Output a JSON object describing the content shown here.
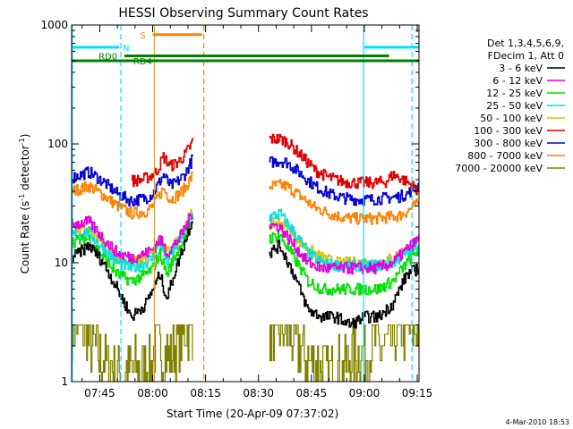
{
  "chart_data": {
    "type": "line",
    "title": "HESSI Observing Summary Count Rates",
    "xlabel": "Start Time (20-Apr-09 07:37:02)",
    "ylabel_main": "Count Rate (s",
    "ylabel_sup1": "-1",
    "ylabel_mid": " detector",
    "ylabel_sup2": "-1",
    "ylabel_end": ")",
    "y_scale": "log",
    "ylim": [
      1,
      1000
    ],
    "xlim_min": [
      457.03,
      555.5
    ],
    "y_ticks": [
      {
        "value": 1,
        "label": "1"
      },
      {
        "value": 10,
        "label": "10"
      },
      {
        "value": 100,
        "label": "100"
      },
      {
        "value": 1000,
        "label": "1000"
      }
    ],
    "x_ticks": [
      {
        "value": 465,
        "label": "07:45"
      },
      {
        "value": 480,
        "label": "08:00"
      },
      {
        "value": 495,
        "label": "08:15"
      },
      {
        "value": 510,
        "label": "08:30"
      },
      {
        "value": 525,
        "label": "08:45"
      },
      {
        "value": 540,
        "label": "09:00"
      },
      {
        "value": 555,
        "label": "09:15"
      }
    ],
    "legend": {
      "header": [
        "Det 1,3,4,5,6,9,",
        "FDecim 1, Att 0"
      ],
      "placement": "right",
      "entries": [
        {
          "label": "3 - 6 keV",
          "color": "#000000"
        },
        {
          "label": "6 - 12 keV",
          "color": "#e000e0"
        },
        {
          "label": "12 - 25 keV",
          "color": "#00e000"
        },
        {
          "label": "25 - 50 keV",
          "color": "#00e0e0"
        },
        {
          "label": "50 - 100 keV",
          "color": "#e0c000"
        },
        {
          "label": "100 - 300 keV",
          "color": "#e00000"
        },
        {
          "label": "300 - 800 keV",
          "color": "#0000d0"
        },
        {
          "label": "800 - 7000 keV",
          "color": "#ff8000"
        },
        {
          "label": "7000 - 20000 keV",
          "color": "#808000"
        }
      ]
    },
    "segments": [
      {
        "x_start": 457.03,
        "x_end": 491.5
      },
      {
        "x_start": 513.0,
        "x_end": 555.5
      }
    ],
    "data_gap": {
      "x_start": 491.5,
      "x_end": 513.0
    },
    "series": [
      {
        "name": "3 - 6 keV",
        "color": "#000000",
        "points": [
          [
            457.03,
            11
          ],
          [
            462,
            14
          ],
          [
            466,
            10
          ],
          [
            470,
            6
          ],
          [
            474,
            3.5
          ],
          [
            478,
            4.5
          ],
          [
            480,
            6
          ],
          [
            482,
            8
          ],
          [
            484,
            5
          ],
          [
            486,
            8
          ],
          [
            488,
            12
          ],
          [
            490,
            18
          ],
          [
            491.5,
            25
          ],
          [
            513,
            12
          ],
          [
            516,
            14
          ],
          [
            520,
            8
          ],
          [
            524,
            4
          ],
          [
            528,
            3.5
          ],
          [
            532,
            3.5
          ],
          [
            536,
            3
          ],
          [
            540,
            3.5
          ],
          [
            544,
            3.5
          ],
          [
            548,
            4.5
          ],
          [
            552,
            8
          ],
          [
            555.5,
            9
          ]
        ]
      },
      {
        "name": "6 - 12 keV",
        "color": "#e000e0",
        "points": [
          [
            457.03,
            21
          ],
          [
            462,
            22
          ],
          [
            466,
            16
          ],
          [
            470,
            12
          ],
          [
            474,
            11
          ],
          [
            478,
            12
          ],
          [
            480,
            13
          ],
          [
            482,
            16
          ],
          [
            484,
            12
          ],
          [
            486,
            14
          ],
          [
            488,
            17
          ],
          [
            490,
            22
          ],
          [
            491.5,
            28
          ],
          [
            513,
            21
          ],
          [
            516,
            20
          ],
          [
            520,
            14
          ],
          [
            524,
            10
          ],
          [
            528,
            9
          ],
          [
            532,
            9
          ],
          [
            536,
            9
          ],
          [
            540,
            9
          ],
          [
            544,
            9
          ],
          [
            548,
            10
          ],
          [
            552,
            13
          ],
          [
            555.5,
            16
          ]
        ]
      },
      {
        "name": "12 - 25 keV",
        "color": "#00e000",
        "points": [
          [
            457.03,
            15
          ],
          [
            462,
            16
          ],
          [
            466,
            11
          ],
          [
            470,
            8
          ],
          [
            474,
            7
          ],
          [
            478,
            8
          ],
          [
            480,
            9
          ],
          [
            482,
            12
          ],
          [
            484,
            8
          ],
          [
            486,
            11
          ],
          [
            488,
            14
          ],
          [
            490,
            18
          ],
          [
            491.5,
            24
          ],
          [
            513,
            16
          ],
          [
            516,
            17
          ],
          [
            520,
            11
          ],
          [
            524,
            7
          ],
          [
            528,
            6
          ],
          [
            532,
            6
          ],
          [
            536,
            6
          ],
          [
            540,
            6
          ],
          [
            544,
            6
          ],
          [
            548,
            7
          ],
          [
            552,
            10
          ],
          [
            555.5,
            13
          ]
        ]
      },
      {
        "name": "25 - 50 keV",
        "color": "#00e0e0",
        "points": [
          [
            457.03,
            17
          ],
          [
            462,
            18
          ],
          [
            466,
            13
          ],
          [
            470,
            10
          ],
          [
            474,
            9
          ],
          [
            478,
            10
          ],
          [
            480,
            11
          ],
          [
            482,
            15
          ],
          [
            484,
            10
          ],
          [
            486,
            13
          ],
          [
            488,
            16
          ],
          [
            490,
            21
          ],
          [
            491.5,
            27
          ],
          [
            513,
            24
          ],
          [
            516,
            26
          ],
          [
            520,
            18
          ],
          [
            524,
            12
          ],
          [
            528,
            10
          ],
          [
            532,
            9.5
          ],
          [
            536,
            9.5
          ],
          [
            540,
            9.5
          ],
          [
            544,
            9.5
          ],
          [
            548,
            10
          ],
          [
            552,
            12
          ],
          [
            555.5,
            14
          ]
        ]
      },
      {
        "name": "50 - 100 keV",
        "color": "#e0c000",
        "points": [
          [
            457.03,
            19
          ],
          [
            462,
            19
          ],
          [
            466,
            14
          ],
          [
            470,
            11
          ],
          [
            474,
            10
          ],
          [
            478,
            11
          ],
          [
            480,
            12
          ],
          [
            482,
            16
          ],
          [
            484,
            12
          ],
          [
            486,
            14
          ],
          [
            488,
            18
          ],
          [
            490,
            23
          ],
          [
            491.5,
            28
          ],
          [
            513,
            21
          ],
          [
            516,
            22
          ],
          [
            520,
            17
          ],
          [
            524,
            13
          ],
          [
            528,
            11
          ],
          [
            532,
            10
          ],
          [
            536,
            10
          ],
          [
            540,
            10
          ],
          [
            544,
            10
          ],
          [
            548,
            11
          ],
          [
            552,
            13
          ],
          [
            555.5,
            15
          ]
        ]
      },
      {
        "name": "100 - 300 keV",
        "color": "#e00000",
        "points": [
          [
            474,
            49
          ],
          [
            477,
            50
          ],
          [
            479,
            53
          ],
          [
            481,
            58
          ],
          [
            483,
            78
          ],
          [
            485,
            65
          ],
          [
            487,
            70
          ],
          [
            489,
            80
          ],
          [
            491,
            100
          ],
          [
            491.5,
            110
          ],
          [
            513,
            110
          ],
          [
            516,
            110
          ],
          [
            518,
            105
          ],
          [
            522,
            80
          ],
          [
            526,
            60
          ],
          [
            530,
            52
          ],
          [
            534,
            48
          ],
          [
            538,
            47
          ],
          [
            542,
            47
          ],
          [
            546,
            48
          ],
          [
            548,
            55
          ],
          [
            550,
            52
          ],
          [
            552,
            48
          ],
          [
            555.5,
            40
          ]
        ]
      },
      {
        "name": "300 - 800 keV",
        "color": "#0000d0",
        "points": [
          [
            457.03,
            52
          ],
          [
            462,
            58
          ],
          [
            466,
            48
          ],
          [
            470,
            38
          ],
          [
            474,
            33
          ],
          [
            478,
            35
          ],
          [
            480,
            38
          ],
          [
            483,
            55
          ],
          [
            485,
            44
          ],
          [
            487,
            48
          ],
          [
            489,
            55
          ],
          [
            491,
            72
          ],
          [
            491.5,
            78
          ],
          [
            513,
            70
          ],
          [
            516,
            72
          ],
          [
            518,
            70
          ],
          [
            522,
            56
          ],
          [
            526,
            44
          ],
          [
            530,
            38
          ],
          [
            534,
            35
          ],
          [
            538,
            34
          ],
          [
            542,
            34
          ],
          [
            546,
            35
          ],
          [
            550,
            36
          ],
          [
            552,
            38
          ],
          [
            555.5,
            45
          ]
        ]
      },
      {
        "name": "800 - 7000 keV",
        "color": "#ff8000",
        "points": [
          [
            457.03,
            40
          ],
          [
            462,
            44
          ],
          [
            466,
            37
          ],
          [
            470,
            30
          ],
          [
            474,
            26
          ],
          [
            478,
            27
          ],
          [
            480,
            30
          ],
          [
            483,
            42
          ],
          [
            485,
            34
          ],
          [
            487,
            37
          ],
          [
            489,
            42
          ],
          [
            491,
            53
          ],
          [
            491.5,
            56
          ],
          [
            513,
            44
          ],
          [
            516,
            45
          ],
          [
            518,
            44
          ],
          [
            522,
            36
          ],
          [
            526,
            29
          ],
          [
            530,
            26
          ],
          [
            534,
            24
          ],
          [
            538,
            23.5
          ],
          [
            542,
            23.5
          ],
          [
            546,
            24
          ],
          [
            550,
            25
          ],
          [
            552,
            27
          ],
          [
            555.5,
            32
          ]
        ]
      },
      {
        "name": "7000 - 20000 keV",
        "color": "#808000",
        "points": [
          [
            457.03,
            2.6
          ],
          [
            459,
            2.9
          ],
          [
            461,
            2.5
          ],
          [
            463,
            2.0
          ],
          [
            465,
            1.6
          ],
          [
            467,
            1.4
          ],
          [
            469,
            1.3
          ],
          [
            471,
            1.2
          ],
          [
            473,
            1.15
          ],
          [
            475,
            1.3
          ],
          [
            477,
            1.2
          ],
          [
            479,
            1.3
          ],
          [
            481,
            2.0
          ],
          [
            483,
            1.8
          ],
          [
            485,
            1.6
          ],
          [
            487,
            2.2
          ],
          [
            489,
            2.6
          ],
          [
            491,
            2.9
          ],
          [
            491.5,
            3.0
          ],
          [
            513,
            2.2
          ],
          [
            515,
            2.8
          ],
          [
            517,
            2.7
          ],
          [
            519,
            2.5
          ],
          [
            521,
            2.0
          ],
          [
            523,
            1.6
          ],
          [
            525,
            1.4
          ],
          [
            527,
            1.3
          ],
          [
            529,
            1.2
          ],
          [
            531,
            1.2
          ],
          [
            533,
            1.3
          ],
          [
            535,
            1.5
          ],
          [
            537,
            1.6
          ],
          [
            539,
            1.8
          ],
          [
            541,
            1.9
          ],
          [
            543,
            2.0
          ],
          [
            545,
            1.9
          ],
          [
            547,
            2.1
          ],
          [
            549,
            2.4
          ],
          [
            551,
            2.6
          ],
          [
            553,
            2.8
          ],
          [
            555.5,
            2.9
          ]
        ]
      }
    ],
    "status_bars": [
      {
        "label": "N",
        "color": "#00e0ff",
        "y_value": 650,
        "x_start": 457.03,
        "x_end": 470.5,
        "label_x": 471.5,
        "label_side": "right"
      },
      {
        "label": "N",
        "color": "#00e0ff",
        "y_value": 650,
        "x_start": 540.0,
        "x_end": 555.5,
        "label_x": null,
        "label_side": "none"
      },
      {
        "label": "S",
        "color": "#ff8000",
        "y_value": 830,
        "x_start": 480.0,
        "x_end": 494.0,
        "label_x": 478.0,
        "label_side": "left"
      },
      {
        "label": "RD0",
        "color": "#008000",
        "y_value": 550,
        "x_start": 472.0,
        "x_end": 547.0,
        "label_x": 470.0,
        "label_side": "left"
      },
      {
        "label": "RD4",
        "color": "#008000",
        "y_value": 500,
        "x_start": 457.03,
        "x_end": 555.5,
        "label_x": 474.5,
        "label_side": "right"
      }
    ],
    "vertical_markers": [
      {
        "x": 471.0,
        "color": "#00e0ff",
        "style": "dashed"
      },
      {
        "x": 480.5,
        "color": "#d4a040",
        "style": "solid"
      },
      {
        "x": 494.5,
        "color": "#ff8000",
        "style": "dashed"
      },
      {
        "x": 539.8,
        "color": "#00e0ff",
        "style": "solid"
      },
      {
        "x": 553.5,
        "color": "#00e0ff",
        "style": "dashed"
      },
      {
        "x": 457.2,
        "color": "#00e0ff",
        "style": "solid"
      }
    ],
    "footer_date": "4-Mar-2010 18:53"
  }
}
